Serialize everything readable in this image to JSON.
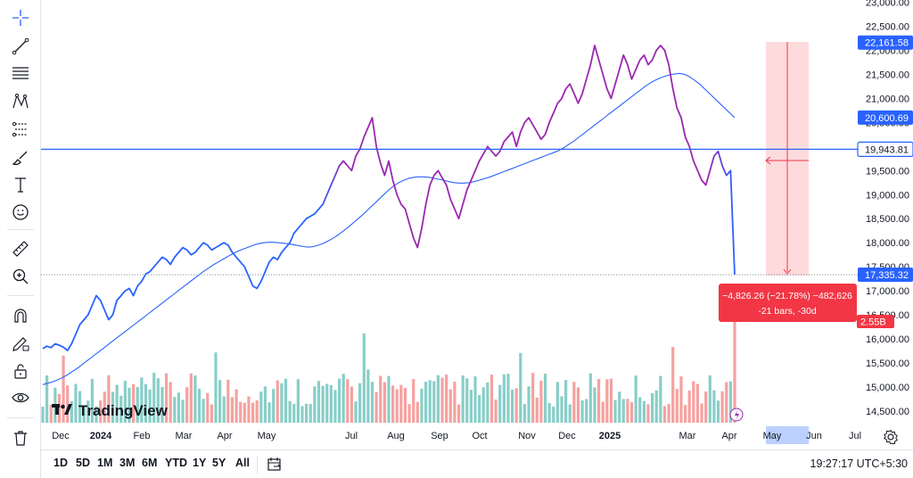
{
  "toolbar": {
    "tools": [
      {
        "name": "crosshair-icon"
      },
      {
        "name": "trend-line-icon"
      },
      {
        "name": "fib-retracement-icon"
      },
      {
        "name": "pattern-icon"
      },
      {
        "name": "prediction-icon"
      },
      {
        "name": "brush-icon"
      },
      {
        "name": "text-icon"
      },
      {
        "name": "emoji-icon"
      },
      {
        "name": "ruler-icon"
      },
      {
        "name": "zoom-in-icon"
      },
      {
        "name": "magnet-icon"
      },
      {
        "name": "pencil-lock-icon"
      },
      {
        "name": "lock-icon"
      },
      {
        "name": "eye-icon"
      },
      {
        "name": "trash-icon"
      }
    ]
  },
  "chart_data": {
    "type": "line",
    "price_scale": {
      "ticks": [
        "23,000.00",
        "22,500.00",
        "22,000.00",
        "21,500.00",
        "21,000.00",
        "20,500.00",
        "20,000.00",
        "19,500.00",
        "19,000.00",
        "18,500.00",
        "18,000.00",
        "17,500.00",
        "17,000.00",
        "16,500.00",
        "16,000.00",
        "15,500.00",
        "15,000.00",
        "14,500.00"
      ],
      "tick_values": [
        23000,
        22500,
        22000,
        21500,
        21000,
        20500,
        20000,
        19500,
        19000,
        18500,
        18000,
        17500,
        17000,
        16500,
        16000,
        15500,
        15000,
        14500
      ]
    },
    "time_axis": {
      "labels": [
        "Dec",
        "2024",
        "Feb",
        "Mar",
        "Apr",
        "May",
        "Jul",
        "Aug",
        "Sep",
        "Oct",
        "Nov",
        "Dec",
        "2025",
        "Mar",
        "Apr",
        "May",
        "Jun",
        "Jul"
      ],
      "bold": [
        "2024",
        "2025"
      ]
    },
    "price_series": {
      "name": "",
      "values": [
        15800,
        15850,
        15820,
        15900,
        15870,
        15830,
        15760,
        15900,
        16100,
        16300,
        16400,
        16500,
        16700,
        16900,
        16800,
        16600,
        16400,
        16500,
        16800,
        16900,
        17000,
        17050,
        16900,
        17100,
        17200,
        17350,
        17400,
        17500,
        17600,
        17700,
        17650,
        17550,
        17700,
        17800,
        17900,
        17850,
        17750,
        17800,
        17900,
        18000,
        17950,
        17850,
        17900,
        17950,
        18000,
        17950,
        17800,
        17700,
        17600,
        17500,
        17300,
        17100,
        17050,
        17200,
        17400,
        17600,
        17700,
        17650,
        17800,
        17900,
        18000,
        18200,
        18300,
        18400,
        18500,
        18550,
        18600,
        18700,
        18800,
        19000,
        19200,
        19400,
        19600,
        19700,
        19600,
        19500,
        19800,
        19950,
        20200,
        20400,
        20600,
        20000,
        19650,
        19400,
        19700,
        19300,
        19000,
        18800,
        18700,
        18400,
        18100,
        17900,
        18300,
        18800,
        19200,
        19400,
        19500,
        19350,
        19200,
        18900,
        18700,
        18500,
        18800,
        19100,
        19300,
        19500,
        19700,
        19850,
        20000,
        19900,
        19800,
        19900,
        20100,
        20200,
        20300,
        20000,
        20300,
        20500,
        20600,
        20450,
        20300,
        20150,
        20250,
        20500,
        20700,
        20900,
        21000,
        21200,
        21300,
        21100,
        20900,
        21100,
        21400,
        21700,
        22100,
        21800,
        21500,
        21200,
        21000,
        21300,
        21600,
        21900,
        21700,
        21400,
        21600,
        21800,
        21900,
        21700,
        21800,
        22000,
        22100,
        22000,
        21700,
        21200,
        20800,
        20600,
        20200,
        20000,
        19700,
        19500,
        19300,
        19200,
        19500,
        19800,
        19900,
        19600,
        19400,
        19500,
        17335
      ],
      "last": "17,335.32",
      "line_colors": [
        "#2962ff",
        "#9c27b0"
      ]
    },
    "moving_average": {
      "name": "",
      "values": [
        15050,
        15080,
        15110,
        15150,
        15200,
        15260,
        15330,
        15400,
        15480,
        15560,
        15640,
        15720,
        15800,
        15880,
        15960,
        16040,
        16120,
        16200,
        16280,
        16360,
        16440,
        16520,
        16600,
        16680,
        16760,
        16840,
        16920,
        17000,
        17080,
        17160,
        17240,
        17320,
        17400,
        17470,
        17540,
        17600,
        17660,
        17720,
        17780,
        17830,
        17870,
        17910,
        17950,
        17980,
        18000,
        18010,
        18010,
        18000,
        17990,
        17980,
        17960,
        17940,
        17920,
        17910,
        17920,
        17950,
        17990,
        18040,
        18100,
        18170,
        18250,
        18330,
        18420,
        18510,
        18600,
        18700,
        18800,
        18900,
        19000,
        19100,
        19180,
        19250,
        19300,
        19340,
        19360,
        19370,
        19370,
        19360,
        19340,
        19320,
        19300,
        19270,
        19250,
        19240,
        19240,
        19250,
        19270,
        19300,
        19330,
        19360,
        19400,
        19440,
        19480,
        19520,
        19560,
        19600,
        19640,
        19680,
        19720,
        19760,
        19800,
        19840,
        19880,
        19920,
        19980,
        20050,
        20120,
        20200,
        20280,
        20360,
        20440,
        20520,
        20600,
        20680,
        20760,
        20840,
        20920,
        21000,
        21080,
        21160,
        21240,
        21310,
        21370,
        21420,
        21460,
        21490,
        21510,
        21520,
        21500,
        21450,
        21380,
        21300,
        21200,
        21100,
        21000,
        20900,
        20800,
        20700,
        20600
      ],
      "last": "20,600.69",
      "color": "#2962ff"
    },
    "horizontal_line": {
      "value": 19943.81,
      "label": "19,943.81",
      "color": "#2962ff"
    },
    "crosshair_price": {
      "label": "22,161.58"
    },
    "volume": {
      "last_label": "2.55B",
      "up_color": "#26a69a",
      "down_color": "#ef5350"
    },
    "measure": {
      "line1": "−4,826.26 (−21.78%) −482,626",
      "line2": "-21 bars, -30d",
      "bg": "#f23645"
    },
    "axis_highlight_label": "May",
    "grid": false
  },
  "watermark": {
    "brand": "TradingView"
  },
  "bottom": {
    "ranges": [
      "1D",
      "5D",
      "1M",
      "3M",
      "6M",
      "YTD",
      "1Y",
      "5Y",
      "All"
    ],
    "clock": "19:27:17 UTC+5:30"
  }
}
